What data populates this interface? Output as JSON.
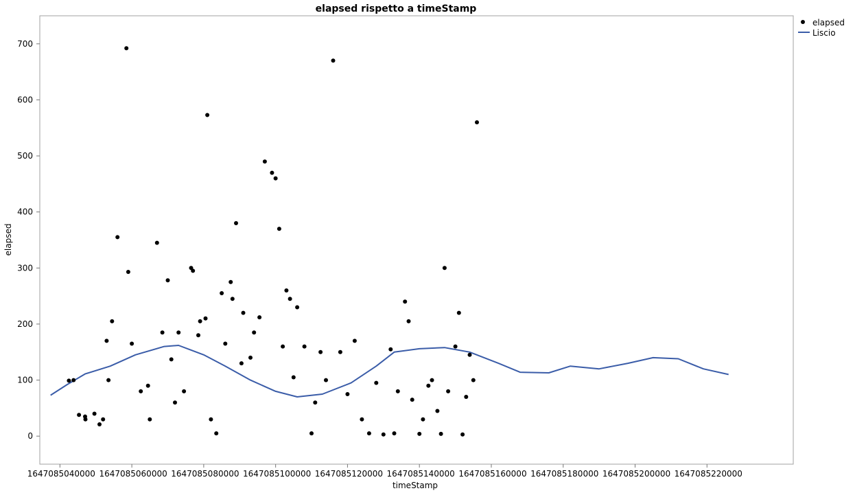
{
  "chart_data": {
    "type": "scatter",
    "title": "elapsed rispetto a timeStamp",
    "xlabel": "timeStamp",
    "ylabel": "elapsed",
    "xlim": [
      1647085034400,
      1647085244000
    ],
    "ylim": [
      -50,
      750
    ],
    "x_ticks": [
      {
        "value": 1647085040000,
        "label": "1647085040000"
      },
      {
        "value": 1647085060000,
        "label": "1647085060000"
      },
      {
        "value": 1647085080000,
        "label": "1647085080000"
      },
      {
        "value": 1647085100000,
        "label": "1647085100000"
      },
      {
        "value": 1647085120000,
        "label": "1647085120000"
      },
      {
        "value": 1647085140000,
        "label": "1647085140000"
      },
      {
        "value": 1647085160000,
        "label": "1647085160000"
      },
      {
        "value": 1647085180000,
        "label": "1647085180000"
      },
      {
        "value": 1647085200000,
        "label": "1647085200000"
      },
      {
        "value": 1647085220000,
        "label": "1647085220000"
      }
    ],
    "y_ticks": [
      {
        "value": 0,
        "label": "0"
      },
      {
        "value": 100,
        "label": "100"
      },
      {
        "value": 200,
        "label": "200"
      },
      {
        "value": 300,
        "label": "300"
      },
      {
        "value": 400,
        "label": "400"
      },
      {
        "value": 500,
        "label": "500"
      },
      {
        "value": 600,
        "label": "600"
      },
      {
        "value": 700,
        "label": "700"
      }
    ],
    "grid": false,
    "legend_position": "top-right, outside plot",
    "series": [
      {
        "name": "elapsed",
        "type": "scatter",
        "color": "#000000",
        "points": [
          [
            1647085043800,
            100
          ],
          [
            1647085042500,
            99
          ],
          [
            1647085047000,
            35
          ],
          [
            1647085045300,
            38
          ],
          [
            1647085047100,
            30
          ],
          [
            1647085049600,
            40
          ],
          [
            1647085051000,
            21
          ],
          [
            1647085052000,
            30
          ],
          [
            1647085053500,
            100
          ],
          [
            1647085053000,
            170
          ],
          [
            1647085054500,
            205
          ],
          [
            1647085056000,
            355
          ],
          [
            1647085058500,
            692
          ],
          [
            1647085059000,
            293
          ],
          [
            1647085060000,
            165
          ],
          [
            1647085062500,
            80
          ],
          [
            1647085064500,
            90
          ],
          [
            1647085065000,
            30
          ],
          [
            1647085067000,
            345
          ],
          [
            1647085068500,
            185
          ],
          [
            1647085070000,
            278
          ],
          [
            1647085071000,
            137
          ],
          [
            1647085072000,
            60
          ],
          [
            1647085073000,
            185
          ],
          [
            1647085074500,
            80
          ],
          [
            1647085076500,
            300
          ],
          [
            1647085077000,
            295
          ],
          [
            1647085078500,
            180
          ],
          [
            1647085079000,
            205
          ],
          [
            1647085080500,
            210
          ],
          [
            1647085081000,
            573
          ],
          [
            1647085082000,
            30
          ],
          [
            1647085083500,
            5
          ],
          [
            1647085085000,
            255
          ],
          [
            1647085086000,
            165
          ],
          [
            1647085087500,
            275
          ],
          [
            1647085088000,
            245
          ],
          [
            1647085089000,
            380
          ],
          [
            1647085090500,
            130
          ],
          [
            1647085091000,
            220
          ],
          [
            1647085093000,
            140
          ],
          [
            1647085094000,
            185
          ],
          [
            1647085095500,
            212
          ],
          [
            1647085097000,
            490
          ],
          [
            1647085099000,
            470
          ],
          [
            1647085100000,
            460
          ],
          [
            1647085101000,
            370
          ],
          [
            1647085102000,
            160
          ],
          [
            1647085103000,
            260
          ],
          [
            1647085104000,
            245
          ],
          [
            1647085105000,
            105
          ],
          [
            1647085106000,
            230
          ],
          [
            1647085108000,
            160
          ],
          [
            1647085110000,
            5
          ],
          [
            1647085111000,
            60
          ],
          [
            1647085112500,
            150
          ],
          [
            1647085114000,
            100
          ],
          [
            1647085116000,
            670
          ],
          [
            1647085118000,
            150
          ],
          [
            1647085120000,
            75
          ],
          [
            1647085122000,
            170
          ],
          [
            1647085124000,
            30
          ],
          [
            1647085126000,
            5
          ],
          [
            1647085128000,
            95
          ],
          [
            1647085130000,
            3
          ],
          [
            1647085132000,
            155
          ],
          [
            1647085133000,
            5
          ],
          [
            1647085134000,
            80
          ],
          [
            1647085136000,
            240
          ],
          [
            1647085137000,
            205
          ],
          [
            1647085138000,
            65
          ],
          [
            1647085140000,
            4
          ],
          [
            1647085141000,
            30
          ],
          [
            1647085142500,
            90
          ],
          [
            1647085143500,
            100
          ],
          [
            1647085145000,
            45
          ],
          [
            1647085146000,
            4
          ],
          [
            1647085147000,
            300
          ],
          [
            1647085148000,
            80
          ],
          [
            1647085150000,
            160
          ],
          [
            1647085151000,
            220
          ],
          [
            1647085152000,
            3
          ],
          [
            1647085153000,
            70
          ],
          [
            1647085154000,
            145
          ],
          [
            1647085155000,
            100
          ],
          [
            1647085156000,
            560
          ]
        ]
      },
      {
        "name": "Liscio",
        "type": "line",
        "color": "#3a5ca8",
        "points": [
          [
            1647085037400,
            73
          ],
          [
            1647085042000,
            92
          ],
          [
            1647085047000,
            111
          ],
          [
            1647085054000,
            125
          ],
          [
            1647085061000,
            145
          ],
          [
            1647085069000,
            160
          ],
          [
            1647085073000,
            162
          ],
          [
            1647085080000,
            145
          ],
          [
            1647085086000,
            125
          ],
          [
            1647085093000,
            100
          ],
          [
            1647085100000,
            80
          ],
          [
            1647085106000,
            70
          ],
          [
            1647085113000,
            75
          ],
          [
            1647085121000,
            95
          ],
          [
            1647085128000,
            125
          ],
          [
            1647085133000,
            150
          ],
          [
            1647085140000,
            156
          ],
          [
            1647085147000,
            158
          ],
          [
            1647085154000,
            150
          ],
          [
            1647085162000,
            130
          ],
          [
            1647085168000,
            114
          ],
          [
            1647085176000,
            113
          ],
          [
            1647085182000,
            125
          ],
          [
            1647085190000,
            120
          ],
          [
            1647085198000,
            130
          ],
          [
            1647085205000,
            140
          ],
          [
            1647085212000,
            138
          ],
          [
            1647085219000,
            120
          ],
          [
            1647085226000,
            110
          ]
        ]
      }
    ]
  }
}
